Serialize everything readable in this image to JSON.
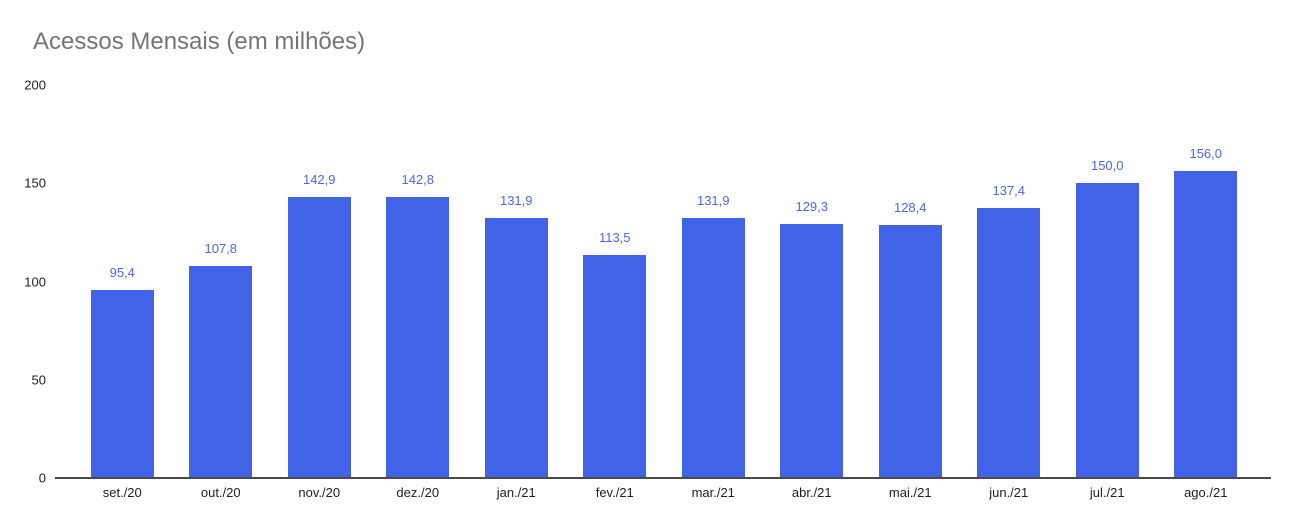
{
  "chart_data": {
    "type": "bar",
    "title": "Acessos Mensais (em milhões)",
    "categories": [
      "set./20",
      "out./20",
      "nov./20",
      "dez./20",
      "jan./21",
      "fev./21",
      "mar./21",
      "abr./21",
      "mai./21",
      "jun./21",
      "jul./21",
      "ago./21"
    ],
    "values": [
      95.4,
      107.8,
      142.9,
      142.8,
      131.9,
      113.5,
      131.9,
      129.3,
      128.4,
      137.4,
      150.0,
      156.0
    ],
    "display_values": [
      "95,4",
      "107,8",
      "142,9",
      "142,8",
      "131,9",
      "113,5",
      "131,9",
      "129,3",
      "128,4",
      "137,4",
      "150,0",
      "156,0"
    ],
    "ylabel": "",
    "xlabel": "",
    "ylim": [
      0,
      200
    ],
    "yticks": [
      0,
      50,
      100,
      150,
      200
    ],
    "grid": false,
    "legend": "none",
    "colors": {
      "bar": "#4262e8",
      "value_label": "#4a68ee",
      "title": "#757575",
      "axis_text": "#212121",
      "axis_line": "#4a4a4a",
      "background": "#ffffff"
    }
  }
}
